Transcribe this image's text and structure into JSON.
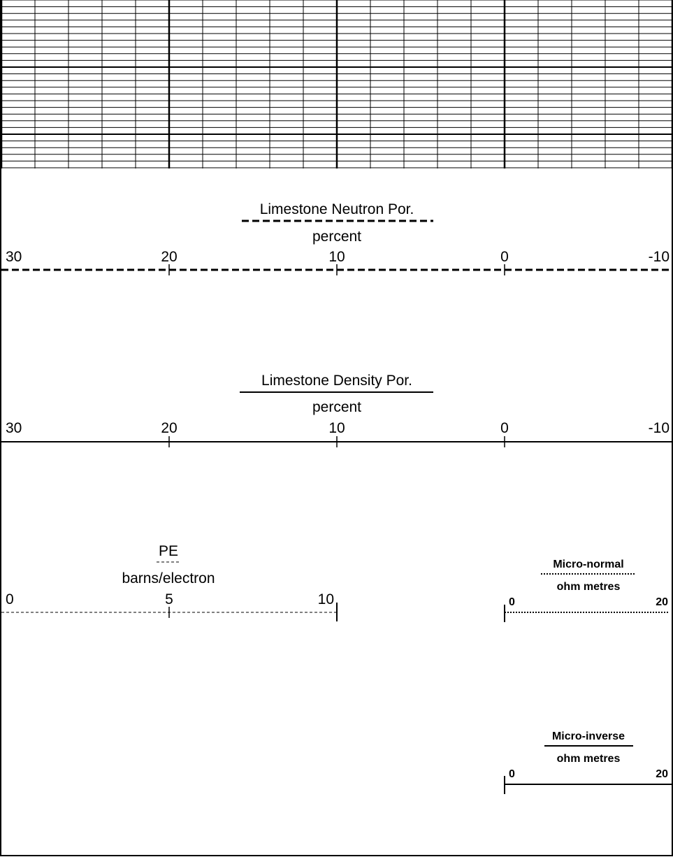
{
  "chart_data": [
    {
      "type": "grid",
      "grid": true,
      "xlim": [
        30,
        -10
      ],
      "major_divisions": 4,
      "minor_divisions_per_major": 5
    },
    {
      "type": "scale",
      "curve": "Limestone Neutron Por.",
      "unit": "percent",
      "line_style": "dashed",
      "xlim": [
        30,
        -10
      ],
      "ticks": [
        "30",
        "20",
        "10",
        "0",
        "-10"
      ]
    },
    {
      "type": "scale",
      "curve": "Limestone Density Por.",
      "unit": "percent",
      "line_style": "solid",
      "xlim": [
        30,
        -10
      ],
      "ticks": [
        "30",
        "20",
        "10",
        "0",
        "-10"
      ]
    },
    {
      "type": "scale",
      "curve": "PE",
      "unit": "barns/electron",
      "line_style": "dashed-fine",
      "xlim": [
        0,
        10
      ],
      "ticks": [
        "0",
        "5",
        "10"
      ]
    },
    {
      "type": "scale",
      "curve": "Micro-normal",
      "unit": "ohm metres",
      "line_style": "dotted",
      "xlim": [
        0,
        20
      ],
      "ticks": [
        "0",
        "20"
      ]
    },
    {
      "type": "scale",
      "curve": "Micro-inverse",
      "unit": "ohm metres",
      "line_style": "solid",
      "xlim": [
        0,
        20
      ],
      "ticks": [
        "0",
        "20"
      ]
    }
  ]
}
